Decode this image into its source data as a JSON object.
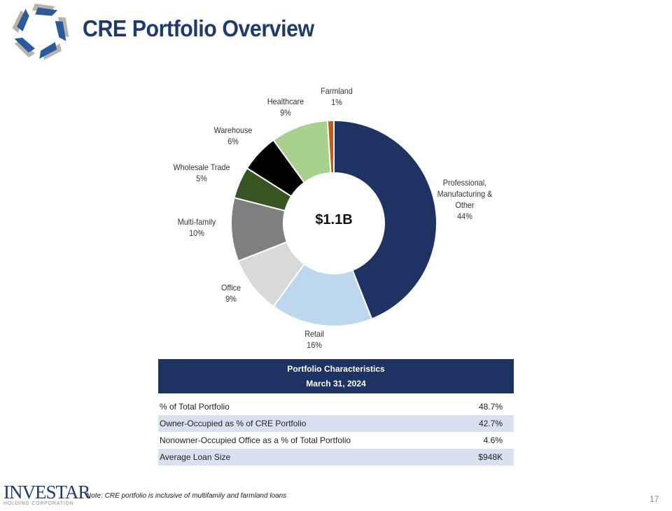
{
  "title": "CRE Portfolio Overview",
  "chart_data": {
    "type": "pie",
    "style": "donut",
    "center_label": "$1.1B",
    "categories": [
      "Professional, Manufacturing & Other",
      "Retail",
      "Office",
      "Multi-family",
      "Wholesale Trade",
      "Warehouse",
      "Healthcare",
      "Farmland"
    ],
    "values": [
      44,
      16,
      9,
      10,
      5,
      6,
      9,
      1
    ],
    "labels": [
      {
        "name": "Professional, Manufacturing & Other",
        "line1": "Professional,",
        "line2": "Manufacturing  &",
        "line3": "Other",
        "pct": "44%"
      },
      {
        "name": "Retail",
        "pct": "16%"
      },
      {
        "name": "Office",
        "pct": "9%"
      },
      {
        "name": "Multi-family",
        "pct": "10%"
      },
      {
        "name": "Wholesale  Trade",
        "pct": "5%"
      },
      {
        "name": "Warehouse",
        "pct": "6%"
      },
      {
        "name": "Healthcare",
        "pct": "9%"
      },
      {
        "name": "Farmland",
        "pct": "1%"
      }
    ],
    "colors": [
      "#1f3264",
      "#bdd7ee",
      "#d9d9d9",
      "#7f7f7f",
      "#375623",
      "#000000",
      "#a9d18e",
      "#c55a11"
    ]
  },
  "table": {
    "header1": "Portfolio Characteristics",
    "header2": "March 31, 2024",
    "rows": [
      {
        "label": "% of Total Portfolio",
        "value": "48.7%"
      },
      {
        "label": "Owner-Occupied as % of CRE Portfolio",
        "value": "42.7%"
      },
      {
        "label": "Nonowner-Occupied Office as a % of Total Portfolio",
        "value": "4.6%"
      },
      {
        "label": "Average Loan Size",
        "value": "$948K"
      }
    ]
  },
  "footer": {
    "brand": "INVESTAR",
    "brand_sub": "HOLDING CORPORATION",
    "note": "Note: CRE portfolio is inclusive of multifamily and farmland loans",
    "page_number": "17"
  }
}
